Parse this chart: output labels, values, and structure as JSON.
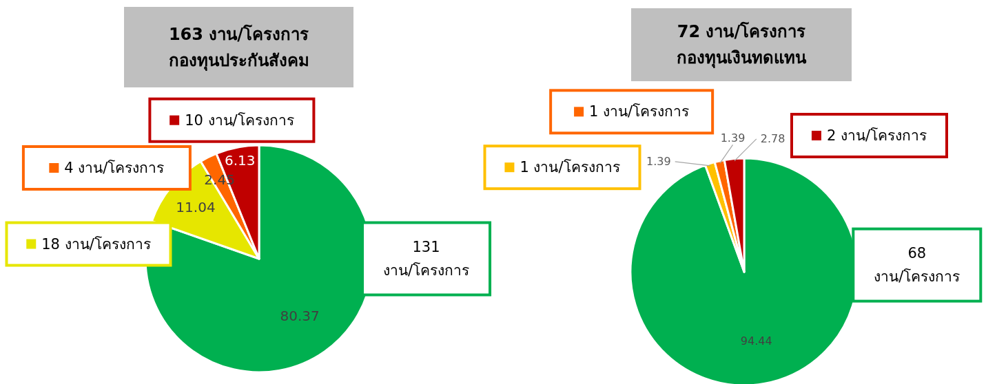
{
  "chart_data": [
    {
      "type": "pie",
      "title": "163 งาน/โครงการ\nกองทุนประกันสังคม",
      "categories": [
        "131 งาน/โครงการ",
        "18 งาน/โครงการ",
        "4 งาน/โครงการ",
        "10 งาน/โครงการ"
      ],
      "values": [
        80.37,
        11.04,
        2.45,
        6.13
      ],
      "colors": [
        "#00b050",
        "#e6e600",
        "#ff6600",
        "#c00000"
      ],
      "data_labels": true,
      "legend": "top left"
    },
    {
      "type": "pie",
      "title": "72 งาน/โครงการ\nกองทุนเงินทดแทน",
      "categories": [
        "68 งาน/โครงการ",
        "1 งาน/โครงการ",
        "1 งาน/โครงการ",
        "2 งาน/โครงการ"
      ],
      "values": [
        94.44,
        1.39,
        1.39,
        2.78
      ],
      "colors": [
        "#00b050",
        "#ffc000",
        "#ff6600",
        "#c00000"
      ],
      "data_labels": true,
      "legend": "top"
    }
  ]
}
